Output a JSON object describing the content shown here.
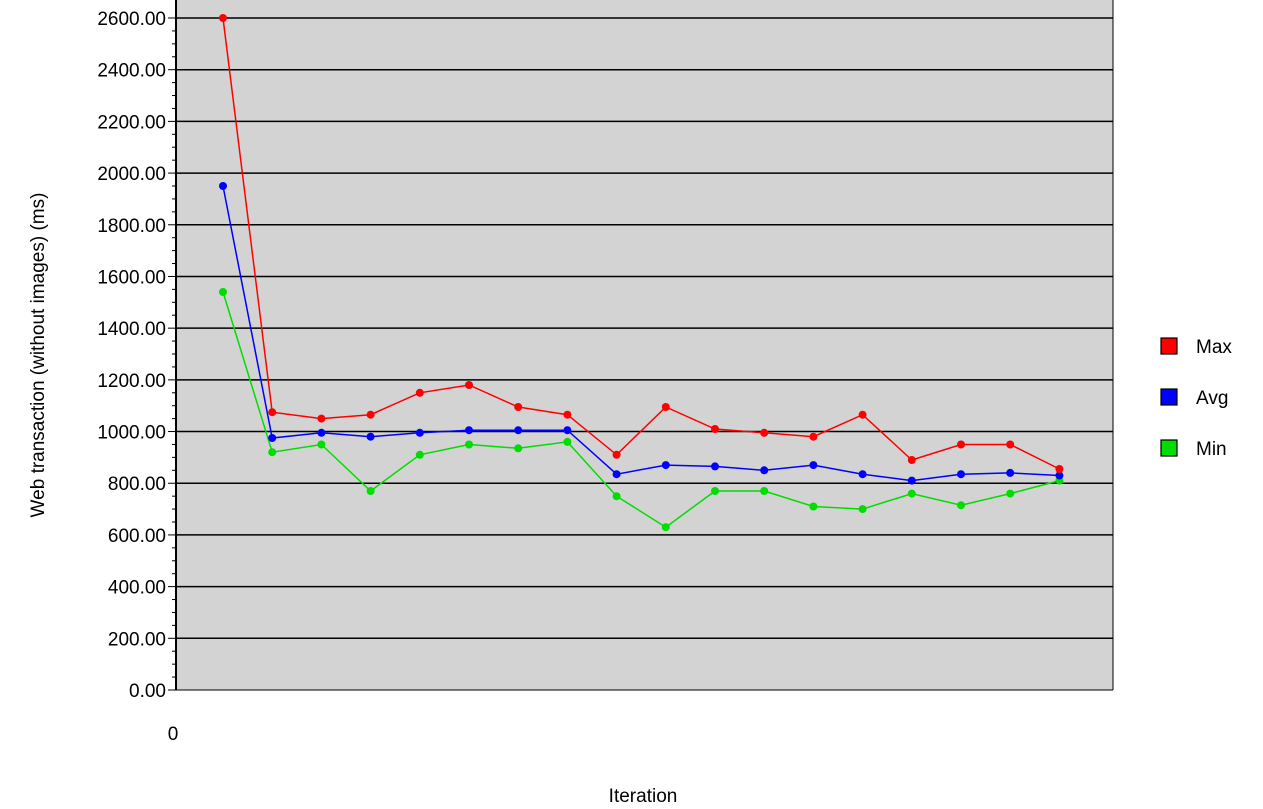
{
  "chart_data": {
    "type": "line",
    "ylabel": "Web transaction (without images) (ms)",
    "xlabel": "Iteration",
    "x_tick_labels": [
      "0"
    ],
    "y_tick_labels": [
      "0.00",
      "200.00",
      "400.00",
      "600.00",
      "800.00",
      "1000.00",
      "1200.00",
      "1400.00",
      "1600.00",
      "1800.00",
      "2000.00",
      "2200.00",
      "2400.00",
      "2600.00"
    ],
    "ylim": [
      0,
      2600
    ],
    "grid": true,
    "legend_position": "right",
    "background_color": "#d3d3d3",
    "x": [
      1,
      2,
      3,
      4,
      5,
      6,
      7,
      8,
      9,
      10,
      11,
      12,
      13,
      14,
      15,
      16,
      17,
      18
    ],
    "series": [
      {
        "name": "Max",
        "color": "#ff0000",
        "values": [
          2600,
          1075,
          1050,
          1065,
          1150,
          1180,
          1095,
          1065,
          910,
          1095,
          1010,
          995,
          980,
          1065,
          890,
          950,
          950,
          855
        ]
      },
      {
        "name": "Avg",
        "color": "#0000ff",
        "values": [
          1950,
          975,
          995,
          980,
          995,
          1005,
          1005,
          1005,
          835,
          870,
          865,
          850,
          870,
          835,
          810,
          835,
          840,
          830
        ]
      },
      {
        "name": "Min",
        "color": "#00dd00",
        "values": [
          1540,
          920,
          950,
          770,
          910,
          950,
          935,
          960,
          750,
          630,
          770,
          770,
          710,
          700,
          760,
          715,
          760,
          810
        ]
      }
    ]
  }
}
